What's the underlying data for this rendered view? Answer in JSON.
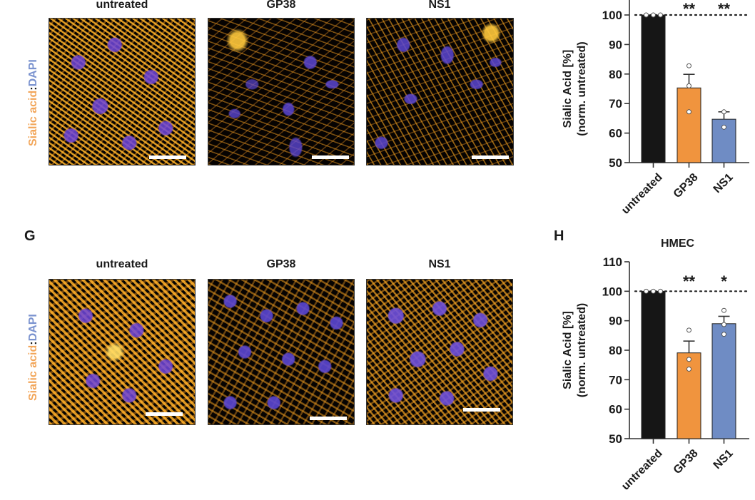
{
  "figure": {
    "row_label": {
      "part1": "Sialic acid",
      "sep": ":",
      "part2": "DAPI"
    },
    "colors": {
      "sialic": "#f2a65a",
      "dapi": "#7b93cf",
      "untreated": "#161616",
      "gp38": "#f0943e",
      "ns1": "#6f8cc4"
    },
    "top_row": {
      "letter": "",
      "columns": [
        "untreated",
        "GP38",
        "NS1"
      ]
    },
    "bottom_row": {
      "letter": "G",
      "columns": [
        "untreated",
        "GP38",
        "NS1"
      ]
    },
    "chart_top": {
      "letter": "",
      "title": ""
    },
    "chart_bottom": {
      "letter": "H",
      "title": "HMEC"
    }
  },
  "chart_data": [
    {
      "type": "bar",
      "title": "",
      "categories": [
        "untreated",
        "GP38",
        "NS1"
      ],
      "values": [
        100,
        75.3,
        64.7
      ],
      "errors": [
        0,
        4.6,
        2.5
      ],
      "points": [
        [
          100,
          100,
          100
        ],
        [
          82.8,
          76.0,
          67.2
        ],
        [
          67.2,
          62.0
        ]
      ],
      "significance": [
        "",
        "**",
        "**"
      ],
      "reference_line": 100,
      "ylabel": "Sialic Acid [%]\n(norm. untreated)",
      "xlabel": "",
      "yticks": [
        50,
        60,
        70,
        80,
        90,
        100
      ],
      "ylim": [
        50,
        100
      ],
      "colors": [
        "#161616",
        "#f0943e",
        "#6f8cc4"
      ],
      "grid": false
    },
    {
      "type": "bar",
      "title": "HMEC",
      "categories": [
        "untreated",
        "GP38",
        "NS1"
      ],
      "values": [
        100,
        79.1,
        89.0
      ],
      "errors": [
        0,
        4.0,
        2.5
      ],
      "points": [
        [
          100,
          100,
          100
        ],
        [
          86.8,
          76.9,
          73.6
        ],
        [
          93.5,
          88.7,
          85.4
        ]
      ],
      "significance": [
        "",
        "**",
        "*"
      ],
      "reference_line": 100,
      "ylabel": "Sialic Acid [%]\n(norm. untreated)",
      "xlabel": "",
      "yticks": [
        50,
        60,
        70,
        80,
        90,
        100,
        110
      ],
      "ylim": [
        50,
        110
      ],
      "colors": [
        "#161616",
        "#f0943e",
        "#6f8cc4"
      ],
      "grid": false
    }
  ]
}
